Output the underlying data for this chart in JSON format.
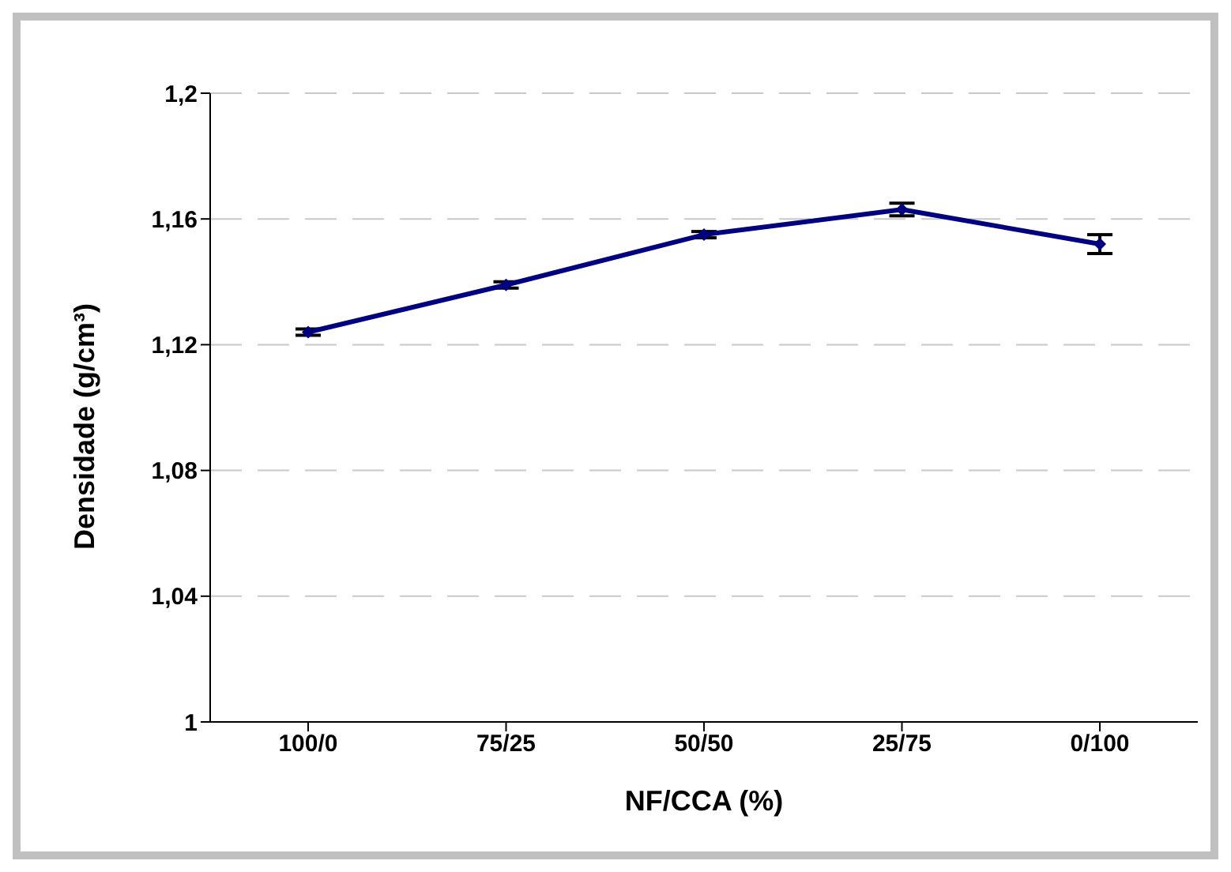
{
  "chart_data": {
    "type": "line",
    "xlabel": "NF/CCA (%)",
    "ylabel": "Densidade (g/cm³)",
    "categories": [
      "100/0",
      "75/25",
      "50/50",
      "25/75",
      "0/100"
    ],
    "series": [
      {
        "color": "#000080",
        "values": [
          1.124,
          1.139,
          1.155,
          1.163,
          1.152
        ],
        "errors": [
          0.001,
          0.001,
          0.001,
          0.002,
          0.003
        ]
      }
    ],
    "ylim": [
      1,
      1.2
    ],
    "yticks": [
      1,
      {
        "value": 1.04,
        "label": "1,04"
      },
      {
        "value": 1.08,
        "label": "1,08"
      },
      {
        "value": 1.12,
        "label": "1,12"
      },
      {
        "value": 1.16,
        "label": "1,16"
      },
      {
        "value": 1.2,
        "label": "1,2"
      }
    ],
    "grid": "y",
    "legend": false,
    "marker": "diamond",
    "line_style": "solid"
  }
}
